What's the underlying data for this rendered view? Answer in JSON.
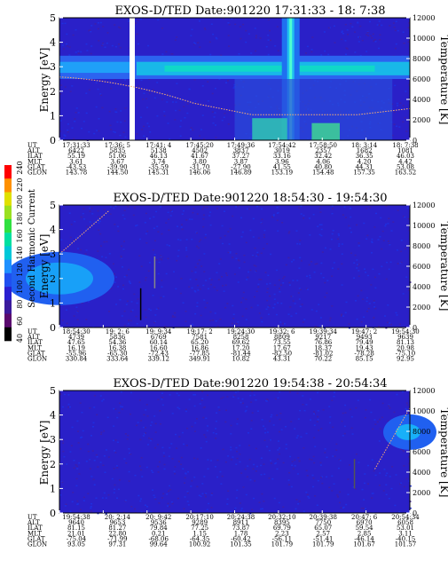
{
  "colorbar": {
    "label": "Second Harmonic Current",
    "ticks": [
      "40",
      "60",
      "80",
      "100",
      "120",
      "140",
      "160",
      "180",
      "200",
      "220",
      "240"
    ],
    "colors": [
      "#000000",
      "#5a0a6e",
      "#3a1a9c",
      "#2a1fd0",
      "#1f4ff0",
      "#1e90ff",
      "#00c8d8",
      "#00e0a0",
      "#30e040",
      "#9ae020",
      "#e0e000",
      "#ff9000",
      "#ff0000"
    ]
  },
  "chart_data": [
    {
      "type": "heatmap",
      "title": "EXOS-D/TED   Date:901220  17:31:33 - 18: 7:38",
      "ylabel": "Energy [eV]",
      "y2label": "Temperature [K]",
      "ylim": [
        0,
        5
      ],
      "y2lim": [
        0,
        12000
      ],
      "yticks": [
        "0",
        "1",
        "2",
        "3",
        "4",
        "5"
      ],
      "y2ticks": [
        "0",
        "2000",
        "4000",
        "6000",
        "8000",
        "10000",
        "12000"
      ],
      "rows": [
        {
          "name": "UT",
          "values": [
            "17:31:33",
            "17:36: 5",
            "17:41: 4",
            "17:45:20",
            "17:49:36",
            "17:54:42",
            "17:58:50",
            "18: 3:14",
            "18: 7:38"
          ]
        },
        {
          "name": "ALT",
          "values": [
            "6422",
            "5835",
            "5138",
            "4502",
            "3837",
            "3019",
            "2357",
            "1682",
            "1081"
          ]
        },
        {
          "name": "ILAT",
          "values": [
            "55.19",
            "51.06",
            "46.13",
            "41.67",
            "37.27",
            "33.16",
            "32.42",
            "36.35",
            "46.03"
          ]
        },
        {
          "name": "MLT",
          "values": [
            "3.61",
            "3.67",
            "3.74",
            "3.80",
            "3.87",
            "3.96",
            "4.06",
            "4.20",
            "4.42"
          ]
        },
        {
          "name": "GLAT",
          "values": [
            "-43.53",
            "-39.90",
            "-35.59",
            "-31.70",
            "-27.90",
            "41.55",
            "40.80",
            "44.31",
            "53.08"
          ]
        },
        {
          "name": "GLON",
          "values": [
            "143.78",
            "144.50",
            "145.31",
            "146.06",
            "146.89",
            "153.19",
            "154.48",
            "157.35",
            "163.52"
          ]
        }
      ]
    },
    {
      "type": "heatmap",
      "title": "EXOS-D/TED   Date:901220  18:54:30 - 19:54:30",
      "ylabel": "Energy [eV]",
      "y2label": "Temperature [K]",
      "ylim": [
        0,
        5
      ],
      "y2lim": [
        0,
        12000
      ],
      "yticks": [
        "0",
        "1",
        "2",
        "3",
        "4",
        "5"
      ],
      "y2ticks": [
        "0",
        "2000",
        "4000",
        "6000",
        "8000",
        "10000",
        "12000"
      ],
      "rows": [
        {
          "name": "UT",
          "values": [
            "18:54:30",
            "19: 2: 6",
            "19: 9:34",
            "19:17: 2",
            "19:24:30",
            "19:32: 6",
            "19:39:34",
            "19:47: 2",
            "19:54:30"
          ]
        },
        {
          "name": "ALT",
          "values": [
            "4739",
            "5836",
            "6769",
            "7581",
            "8258",
            "8809",
            "9217",
            "9493",
            "9639"
          ]
        },
        {
          "name": "ILAT",
          "values": [
            "47.65",
            "54.36",
            "60.14",
            "65.20",
            "69.62",
            "73.55",
            "76.86",
            "79.49",
            "81.13"
          ]
        },
        {
          "name": "MLT",
          "values": [
            "16.19",
            "16.38",
            "16.60",
            "16.86",
            "17.20",
            "17.67",
            "18.37",
            "19.43",
            "20.98"
          ]
        },
        {
          "name": "GLAT",
          "values": [
            "-55.96",
            "-65.30",
            "-72.43",
            "-77.85",
            "-81.44",
            "-82.50",
            "-81.02",
            "-78.28",
            "-75.10"
          ]
        },
        {
          "name": "GLON",
          "values": [
            "330.84",
            "333.64",
            "339.12",
            "349.91",
            "10.82",
            "43.31",
            "70.22",
            "85.15",
            "92.95"
          ]
        }
      ]
    },
    {
      "type": "heatmap",
      "title": "EXOS-D/TED   Date:901220  19:54:38 - 20:54:34",
      "ylabel": "Energy [eV]",
      "y2label": "Temperature [K]",
      "ylim": [
        0,
        5
      ],
      "y2lim": [
        0,
        12000
      ],
      "yticks": [
        "0",
        "1",
        "2",
        "3",
        "4",
        "5"
      ],
      "y2ticks": [
        "0",
        "2000",
        "4000",
        "6000",
        "8000",
        "10000",
        "12000"
      ],
      "rows": [
        {
          "name": "UT",
          "values": [
            "19:54:38",
            "20: 2:14",
            "20: 9:42",
            "20:17:10",
            "20:24:38",
            "20:32:10",
            "20:39:38",
            "20:47: 6",
            "20:54:34"
          ]
        },
        {
          "name": "ALT",
          "values": [
            "9640",
            "9653",
            "9536",
            "9289",
            "8911",
            "8395",
            "7750",
            "6970",
            "6058"
          ]
        },
        {
          "name": "ILAT",
          "values": [
            "81.15",
            "81.27",
            "79.84",
            "77.25",
            "73.87",
            "69.79",
            "65.07",
            "59.54",
            "53.01"
          ]
        },
        {
          "name": "MLT",
          "values": [
            "21.01",
            "22.80",
            "0.21",
            "1.15",
            "1.78",
            "2.23",
            "2.57",
            "2.85",
            "3.11"
          ]
        },
        {
          "name": "GLAT",
          "values": [
            "-75.04",
            "-71.99",
            "-68.06",
            "-64.35",
            "-60.42",
            "-56.11",
            "-51.41",
            "-46.14",
            "-40.15"
          ]
        },
        {
          "name": "GLON",
          "values": [
            "93.05",
            "97.31",
            "99.64",
            "100.92",
            "101.35",
            "101.79",
            "101.79",
            "101.67",
            "101.57"
          ]
        }
      ]
    }
  ]
}
